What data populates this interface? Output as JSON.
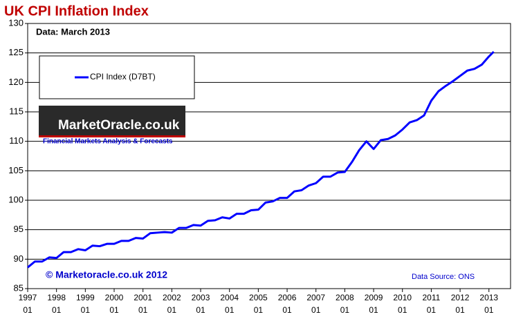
{
  "chart_data": {
    "type": "line",
    "title": "UK CPI Inflation Index",
    "subtitle": "Data: March 2013",
    "annotations": [
      "© Marketoracle.co.uk 2012",
      "Data Source: ONS",
      "MarketOracle.co.uk",
      "Financial Markets Analysis & Forecasts"
    ],
    "x": [
      "1997-01",
      "1997-04",
      "1997-07",
      "1997-10",
      "1998-01",
      "1998-04",
      "1998-07",
      "1998-10",
      "1999-01",
      "1999-04",
      "1999-07",
      "1999-10",
      "2000-01",
      "2000-04",
      "2000-07",
      "2000-10",
      "2001-01",
      "2001-04",
      "2001-07",
      "2001-10",
      "2002-01",
      "2002-04",
      "2002-07",
      "2002-10",
      "2003-01",
      "2003-04",
      "2003-07",
      "2003-10",
      "2004-01",
      "2004-04",
      "2004-07",
      "2004-10",
      "2005-01",
      "2005-04",
      "2005-07",
      "2005-10",
      "2006-01",
      "2006-04",
      "2006-07",
      "2006-10",
      "2007-01",
      "2007-04",
      "2007-07",
      "2007-10",
      "2008-01",
      "2008-04",
      "2008-07",
      "2008-10",
      "2009-01",
      "2009-04",
      "2009-07",
      "2009-10",
      "2010-01",
      "2010-04",
      "2010-07",
      "2010-10",
      "2011-01",
      "2011-04",
      "2011-07",
      "2011-10",
      "2012-01",
      "2012-04",
      "2012-07",
      "2012-10",
      "2013-01",
      "2013-03"
    ],
    "series": [
      {
        "name": "CPI Index (D7BT)",
        "color": "#0000ff",
        "values": [
          88.6,
          89.6,
          89.6,
          90.3,
          90.2,
          91.2,
          91.2,
          91.7,
          91.5,
          92.3,
          92.2,
          92.6,
          92.6,
          93.1,
          93.1,
          93.6,
          93.5,
          94.4,
          94.5,
          94.6,
          94.5,
          95.3,
          95.3,
          95.8,
          95.7,
          96.5,
          96.6,
          97.1,
          96.9,
          97.7,
          97.7,
          98.3,
          98.4,
          99.6,
          99.8,
          100.4,
          100.4,
          101.5,
          101.7,
          102.5,
          102.9,
          104.0,
          104.0,
          104.7,
          104.8,
          106.5,
          108.5,
          110.0,
          108.7,
          110.2,
          110.4,
          111.0,
          112.0,
          113.2,
          113.6,
          114.4,
          116.9,
          118.5,
          119.4,
          120.2,
          121.1,
          122.0,
          122.3,
          123.0,
          124.4,
          125.2
        ]
      }
    ],
    "xlim": [
      "1997-01",
      "2013-10"
    ],
    "xticks": [
      {
        "value": "1997-01",
        "label": [
          "1997",
          "01"
        ]
      },
      {
        "value": "1998-01",
        "label": [
          "1998",
          "01"
        ]
      },
      {
        "value": "1999-01",
        "label": [
          "1999",
          "01"
        ]
      },
      {
        "value": "2000-01",
        "label": [
          "2000",
          "01"
        ]
      },
      {
        "value": "2001-01",
        "label": [
          "2001",
          "01"
        ]
      },
      {
        "value": "2002-01",
        "label": [
          "2002",
          "01"
        ]
      },
      {
        "value": "2003-01",
        "label": [
          "2003",
          "01"
        ]
      },
      {
        "value": "2004-01",
        "label": [
          "2004",
          "01"
        ]
      },
      {
        "value": "2005-01",
        "label": [
          "2005",
          "01"
        ]
      },
      {
        "value": "2006-01",
        "label": [
          "2006",
          "01"
        ]
      },
      {
        "value": "2007-01",
        "label": [
          "2007",
          "01"
        ]
      },
      {
        "value": "2008-01",
        "label": [
          "2008",
          "01"
        ]
      },
      {
        "value": "2009-01",
        "label": [
          "2009",
          "01"
        ]
      },
      {
        "value": "2010-01",
        "label": [
          "2010",
          "01"
        ]
      },
      {
        "value": "2011-01",
        "label": [
          "2011",
          "01"
        ]
      },
      {
        "value": "2012-01",
        "label": [
          "2012",
          "01"
        ]
      },
      {
        "value": "2013-01",
        "label": [
          "2013",
          "01"
        ]
      }
    ],
    "ylim": [
      85,
      130
    ],
    "yticks": [
      85,
      90,
      95,
      100,
      105,
      110,
      115,
      120,
      125,
      130
    ],
    "grid": true
  }
}
